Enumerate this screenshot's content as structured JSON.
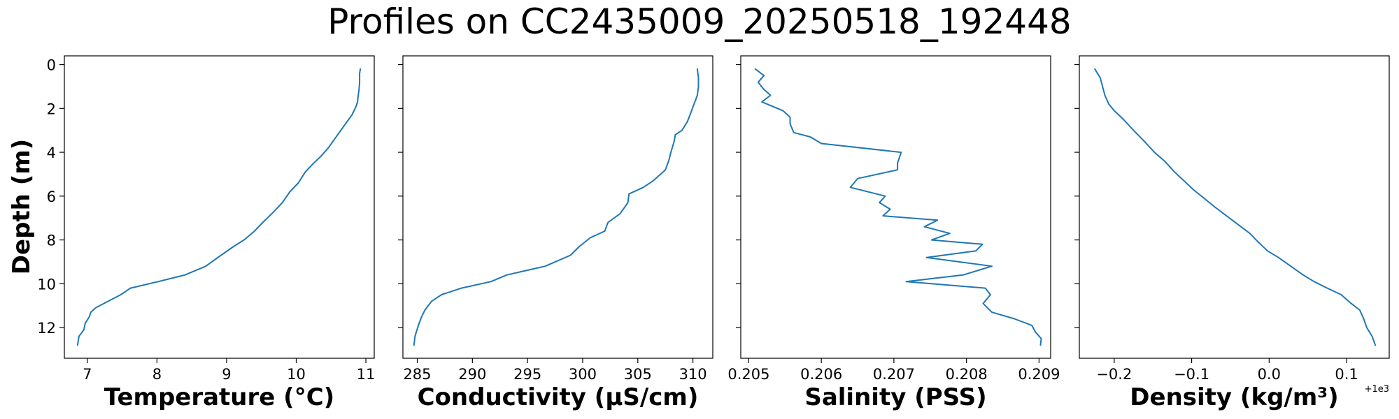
{
  "chart_data": {
    "type": "line",
    "title": "Profiles on CC2435009_20250518_192448",
    "ylabel": "Depth (m)",
    "ylim": [
      13.4,
      -0.4
    ],
    "yticks": [
      0,
      2,
      4,
      6,
      8,
      10,
      12
    ],
    "yticklabels": [
      "0",
      "2",
      "4",
      "6",
      "8",
      "10",
      "12"
    ],
    "line_color": "#1f77b4",
    "panels": [
      {
        "name": "temperature",
        "xlabel": "Temperature (°C)",
        "xlim": [
          6.67,
          11.12
        ],
        "xticks": [
          7,
          8,
          9,
          10,
          11
        ],
        "xticklabels": [
          "7",
          "8",
          "9",
          "10",
          "11"
        ],
        "offset_text": "",
        "depth": [
          0.2,
          0.4,
          0.8,
          1.2,
          1.4,
          1.7,
          1.9,
          2.1,
          2.3,
          2.6,
          3.0,
          3.4,
          3.8,
          4.2,
          4.5,
          4.9,
          5.4,
          5.8,
          6.3,
          6.8,
          7.2,
          7.6,
          8.0,
          8.3,
          8.7,
          9.2,
          9.6,
          9.9,
          10.2,
          10.5,
          10.8,
          11.1,
          11.3,
          11.5,
          11.8,
          12.1,
          12.4,
          12.8
        ],
        "values": [
          10.92,
          10.91,
          10.91,
          10.9,
          10.89,
          10.88,
          10.86,
          10.83,
          10.8,
          10.73,
          10.64,
          10.55,
          10.46,
          10.35,
          10.25,
          10.13,
          10.03,
          9.91,
          9.8,
          9.65,
          9.52,
          9.4,
          9.25,
          9.1,
          8.92,
          8.7,
          8.4,
          8.02,
          7.62,
          7.48,
          7.3,
          7.12,
          7.05,
          7.03,
          6.97,
          6.95,
          6.88,
          6.86
        ]
      },
      {
        "name": "conductivity",
        "xlabel": "Conductivity (µS/cm)",
        "xlim": [
          283.7,
          311.8
        ],
        "xticks": [
          285,
          290,
          295,
          300,
          305,
          310
        ],
        "xticklabels": [
          "285",
          "290",
          "295",
          "300",
          "305",
          "310"
        ],
        "offset_text": "",
        "depth": [
          0.2,
          0.6,
          1.0,
          1.4,
          1.8,
          2.2,
          2.6,
          3.0,
          3.2,
          3.5,
          4.0,
          4.4,
          4.8,
          5.3,
          5.6,
          5.9,
          6.3,
          6.8,
          7.2,
          7.6,
          7.9,
          8.3,
          8.7,
          9.2,
          9.6,
          9.9,
          10.2,
          10.5,
          10.8,
          11.2,
          11.5,
          11.9,
          12.4,
          12.8
        ],
        "values": [
          310.4,
          310.5,
          310.5,
          310.4,
          310.1,
          309.8,
          309.5,
          309.0,
          308.4,
          308.3,
          308.0,
          307.8,
          307.5,
          306.4,
          305.5,
          304.2,
          304.1,
          303.4,
          302.3,
          302.0,
          300.7,
          299.7,
          298.9,
          296.6,
          293.1,
          291.7,
          289.0,
          287.2,
          286.3,
          285.7,
          285.4,
          285.1,
          284.8,
          284.7
        ]
      },
      {
        "name": "salinity",
        "xlabel": "Salinity (PSS)",
        "xlim": [
          0.20489,
          0.20916
        ],
        "xticks": [
          0.205,
          0.206,
          0.207,
          0.208,
          0.209
        ],
        "xticklabels": [
          "0.205",
          "0.206",
          "0.207",
          "0.208",
          "0.209"
        ],
        "offset_text": "",
        "depth": [
          0.2,
          0.5,
          0.8,
          1.1,
          1.4,
          1.7,
          2.1,
          2.4,
          2.7,
          3.1,
          3.3,
          3.6,
          4.0,
          4.5,
          4.8,
          5.2,
          5.6,
          6.0,
          6.3,
          6.6,
          6.9,
          7.1,
          7.4,
          7.7,
          8.0,
          8.2,
          8.5,
          8.8,
          9.2,
          9.6,
          9.9,
          10.2,
          10.5,
          10.9,
          11.3,
          11.6,
          11.9,
          12.2,
          12.5,
          12.8
        ],
        "values": [
          0.20509,
          0.20521,
          0.20513,
          0.2052,
          0.2053,
          0.20518,
          0.20547,
          0.20557,
          0.20557,
          0.20562,
          0.20585,
          0.206,
          0.2071,
          0.20705,
          0.20705,
          0.2065,
          0.2064,
          0.20688,
          0.2068,
          0.20695,
          0.20685,
          0.2076,
          0.20742,
          0.20777,
          0.20752,
          0.20822,
          0.20813,
          0.20745,
          0.20835,
          0.20795,
          0.20717,
          0.20826,
          0.20833,
          0.20823,
          0.20835,
          0.20866,
          0.2089,
          0.20895,
          0.20903,
          0.20902
        ]
      },
      {
        "name": "density",
        "xlabel": "Density (kg/m³)",
        "xlim": [
          -0.245,
          0.155
        ],
        "xticks": [
          -0.2,
          -0.1,
          0.0,
          0.1
        ],
        "xticklabels": [
          "−0.2",
          "−0.1",
          "0.0",
          "0.1"
        ],
        "offset_text": "+1e3",
        "depth": [
          0.2,
          0.6,
          1.0,
          1.4,
          1.8,
          2.1,
          2.5,
          3.0,
          3.5,
          4.0,
          4.4,
          4.9,
          5.3,
          5.7,
          6.1,
          6.5,
          6.9,
          7.3,
          7.7,
          8.1,
          8.5,
          8.8,
          9.2,
          9.6,
          9.9,
          10.2,
          10.5,
          10.9,
          11.2,
          11.6,
          12.0,
          12.4,
          12.8
        ],
        "values": [
          -0.225,
          -0.218,
          -0.215,
          -0.212,
          -0.207,
          -0.2,
          -0.188,
          -0.175,
          -0.161,
          -0.148,
          -0.135,
          -0.122,
          -0.11,
          -0.098,
          -0.084,
          -0.07,
          -0.055,
          -0.04,
          -0.025,
          -0.014,
          -0.002,
          0.012,
          0.028,
          0.044,
          0.058,
          0.075,
          0.093,
          0.106,
          0.117,
          0.122,
          0.126,
          0.133,
          0.137
        ]
      }
    ]
  }
}
